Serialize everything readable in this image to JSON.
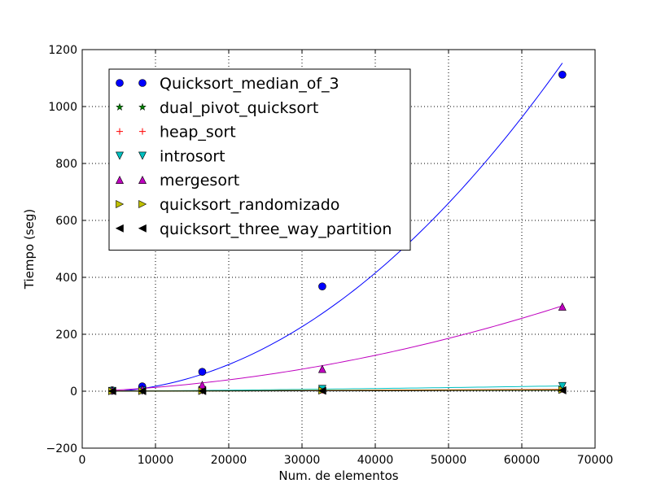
{
  "chart_data": {
    "type": "scatter",
    "title": "",
    "xlabel": "Num. de elementos",
    "ylabel": "Tiempo (seg)",
    "xlim": [
      0,
      70000
    ],
    "ylim": [
      -200,
      1200
    ],
    "xticks": [
      0,
      10000,
      20000,
      30000,
      40000,
      50000,
      60000,
      70000
    ],
    "yticks": [
      -200,
      0,
      200,
      400,
      600,
      800,
      1000,
      1200
    ],
    "xtick_labels": [
      "0",
      "10000",
      "20000",
      "30000",
      "40000",
      "50000",
      "60000",
      "70000"
    ],
    "ytick_labels": [
      "−200",
      "0",
      "200",
      "400",
      "600",
      "800",
      "1000",
      "1200"
    ],
    "grid": true,
    "legend_position": "upper-left",
    "x": [
      4096,
      8192,
      16384,
      32768,
      65536
    ],
    "series": [
      {
        "name": "Quicksort_median_of_3",
        "marker": "circle",
        "color": "#0000ff",
        "values": [
          3,
          17,
          68,
          368,
          1112
        ],
        "fit": [
          0.000281,
          -0.78,
          -3
        ]
      },
      {
        "name": "dual_pivot_quicksort",
        "marker": "star",
        "color": "#008000",
        "values": [
          0.2,
          0.4,
          0.9,
          1.8,
          3.8
        ],
        "fit": null
      },
      {
        "name": "heap_sort",
        "marker": "plus",
        "color": "#ff0000",
        "values": [
          0.3,
          0.6,
          1.4,
          3,
          6.5
        ],
        "fit": null
      },
      {
        "name": "introsort",
        "marker": "triangle-down",
        "color": "#00bfbf",
        "values": [
          1,
          2,
          4,
          8,
          18
        ],
        "fit": [
          1.5e-06,
          0.2,
          -1
        ]
      },
      {
        "name": "mergesort",
        "marker": "triangle-up",
        "color": "#bf00bf",
        "values": [
          3,
          7,
          22,
          78,
          297
        ],
        "fit": [
          5.5e-05,
          1.0,
          -2
        ]
      },
      {
        "name": "quicksort_randomizado",
        "marker": "triangle-right",
        "color": "#bfbf00",
        "values": [
          0.3,
          0.6,
          1.2,
          2.5,
          5
        ],
        "fit": null
      },
      {
        "name": "quicksort_three_way_partition",
        "marker": "triangle-left",
        "color": "#000000",
        "values": [
          0.2,
          0.4,
          0.8,
          1.6,
          3.2
        ],
        "fit": null
      }
    ]
  }
}
